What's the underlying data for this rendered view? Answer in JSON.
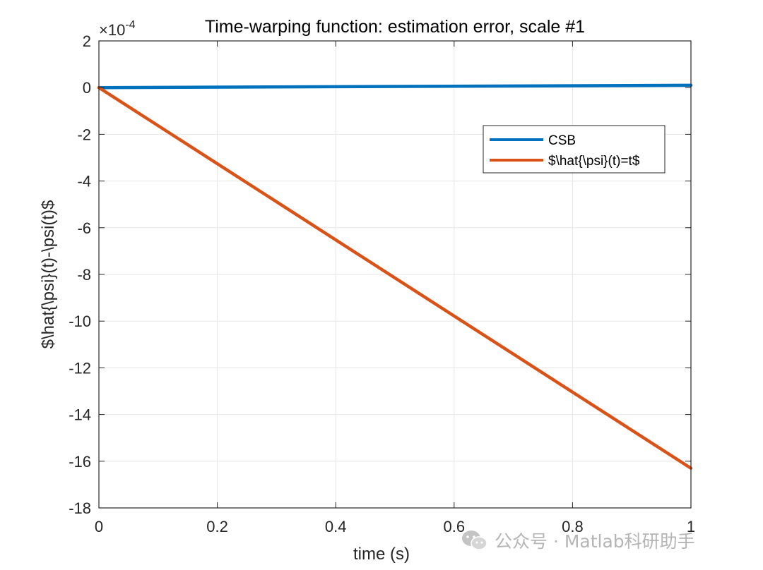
{
  "chart_data": {
    "type": "line",
    "title": "Time-warping function: estimation error, scale #1",
    "xlabel": "time (s)",
    "ylabel": "$\\hat{\\psi}(t)-\\psi(t)$",
    "y_exponent_label": "×10",
    "y_exponent_value": "-4",
    "xlim": [
      0,
      1
    ],
    "ylim": [
      -18,
      2
    ],
    "xticks": [
      0,
      0.2,
      0.4,
      0.6,
      0.8,
      1
    ],
    "xtick_labels": [
      "0",
      "0.2",
      "0.4",
      "0.6",
      "0.8",
      "1"
    ],
    "yticks": [
      2,
      0,
      -2,
      -4,
      -6,
      -8,
      -10,
      -12,
      -14,
      -16,
      -18
    ],
    "ytick_labels": [
      "2",
      "0",
      "-2",
      "-4",
      "-6",
      "-8",
      "-10",
      "-12",
      "-14",
      "-16",
      "-18"
    ],
    "grid": true,
    "legend_position": "upper-right",
    "series": [
      {
        "name": "CSB",
        "color": "#0072BD",
        "x": [
          0,
          1
        ],
        "y": [
          0,
          0.1
        ]
      },
      {
        "name": "$\\hat{\\psi}(t)=t$",
        "color": "#D95319",
        "x": [
          0,
          1
        ],
        "y": [
          0,
          -16.3
        ]
      }
    ]
  },
  "watermark": {
    "text": "公众号 · Matlab科研助手",
    "icon": "wechat-icon"
  }
}
